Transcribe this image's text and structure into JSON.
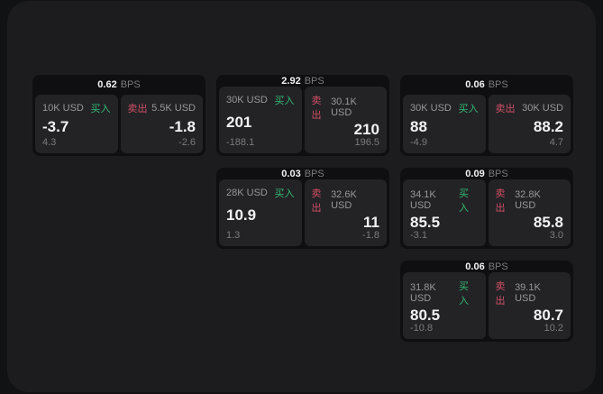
{
  "theme": {
    "outer_bg": "#111214",
    "window_bg": "#1c1c1e",
    "card_bg": "#0f0f11",
    "panel_bg": "#232326",
    "buy_green": "#33b973",
    "sell_red": "#cf4f63"
  },
  "labels": {
    "bps_unit": "BPS",
    "buy": "买入",
    "sell": "卖出"
  },
  "cards": [
    {
      "bps": "0.62",
      "row": 1,
      "col": 1,
      "buy": {
        "amount": "10K USD",
        "value": "-3.7",
        "sub": "4.3"
      },
      "sell": {
        "amount": "5.5K USD",
        "value": "-1.8",
        "sub": "-2.6"
      }
    },
    {
      "bps": "2.92",
      "row": 1,
      "col": 2,
      "buy": {
        "amount": "30K USD",
        "value": "201",
        "sub": "-188.1"
      },
      "sell": {
        "amount": "30.1K USD",
        "value": "210",
        "sub": "196.5"
      }
    },
    {
      "bps": "0.06",
      "row": 1,
      "col": 3,
      "buy": {
        "amount": "30K USD",
        "value": "88",
        "sub": "-4.9"
      },
      "sell": {
        "amount": "30K USD",
        "value": "88.2",
        "sub": "4.7"
      }
    },
    {
      "bps": "0.03",
      "row": 2,
      "col": 2,
      "buy": {
        "amount": "28K USD",
        "value": "10.9",
        "sub": "1.3"
      },
      "sell": {
        "amount": "32.6K USD",
        "value": "11",
        "sub": "-1.8"
      }
    },
    {
      "bps": "0.09",
      "row": 2,
      "col": 3,
      "buy": {
        "amount": "34.1K USD",
        "value": "85.5",
        "sub": "-3.1"
      },
      "sell": {
        "amount": "32.8K USD",
        "value": "85.8",
        "sub": "3.0"
      }
    },
    {
      "bps": "0.06",
      "row": 3,
      "col": 3,
      "buy": {
        "amount": "31.8K USD",
        "value": "80.5",
        "sub": "-10.8"
      },
      "sell": {
        "amount": "39.1K USD",
        "value": "80.7",
        "sub": "10.2"
      }
    }
  ]
}
